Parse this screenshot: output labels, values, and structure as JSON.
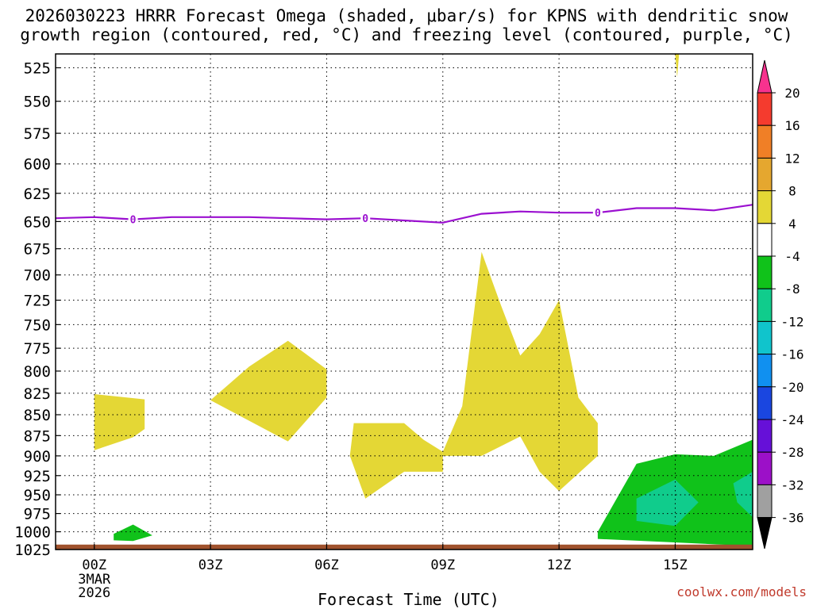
{
  "title_line1": "2026030223 HRRR Forecast Omega (shaded, μbar/s) for KPNS with dendritic snow",
  "title_line2": "growth region (contoured, red, °C) and freezing level (contoured, purple, °C)",
  "xlabel": "Forecast Time (UTC)",
  "credit": "coolwx.com/models",
  "chart_data": {
    "type": "heatmap",
    "title": "2026030223 HRRR Forecast Omega (shaded, μbar/s) for KPNS with dendritic snow growth region (contoured, red, °C) and freezing level (contoured, purple, °C)",
    "xlabel": "Forecast Time (UTC)",
    "ylabel": "",
    "x_ticks": [
      "00Z",
      "03Z",
      "06Z",
      "09Z",
      "12Z",
      "15Z"
    ],
    "x_tick_hours": [
      0,
      3,
      6,
      9,
      12,
      15
    ],
    "x_date_label": [
      "3MAR",
      "2026"
    ],
    "xlim_hours": [
      -1,
      17
    ],
    "y_ticks": [
      525,
      550,
      575,
      600,
      625,
      650,
      675,
      700,
      725,
      750,
      775,
      800,
      825,
      850,
      875,
      900,
      925,
      950,
      975,
      1000,
      1025
    ],
    "ylim_hpa": [
      515,
      1025
    ],
    "y_scale": "log-pressure (inverted)",
    "grid": true,
    "colorbar": {
      "levels": [
        20,
        16,
        12,
        8,
        4,
        -4,
        -8,
        -12,
        -16,
        -20,
        -24,
        -28,
        -32,
        -36
      ],
      "colors": [
        "#f7328e",
        "#f53b2e",
        "#f07f26",
        "#e5a72f",
        "#e4d735",
        "#ffffff",
        "#10c21a",
        "#10cc8c",
        "#10c4cc",
        "#1090f0",
        "#1a46e0",
        "#6610d8",
        "#9c10c8",
        "#a0a0a0",
        "#000000"
      ]
    },
    "freezing_level": {
      "label": "0",
      "color": "#9b10d0",
      "hours": [
        -1,
        0,
        1,
        2,
        3,
        4,
        5,
        6,
        7,
        8,
        9,
        10,
        11,
        12,
        13,
        14,
        15,
        16,
        17
      ],
      "pressure_hpa": [
        647,
        646,
        648,
        646,
        646,
        646,
        647,
        648,
        647,
        649,
        651,
        643,
        641,
        642,
        642,
        638,
        638,
        640,
        635
      ]
    },
    "shaded_regions": [
      {
        "category": "4 to 8 μbar/s",
        "color": "#e4d735",
        "hours": [
          0,
          1.3,
          1.3,
          1,
          0
        ],
        "pressure_hpa": [
          826,
          832,
          867,
          877,
          893
        ]
      },
      {
        "category": "4 to 8 μbar/s",
        "color": "#e4d735",
        "hours": [
          3,
          4,
          5,
          6,
          6,
          5,
          3
        ],
        "pressure_hpa": [
          833,
          795,
          767,
          798,
          830,
          882,
          833
        ]
      },
      {
        "category": "4 to 8 μbar/s",
        "color": "#e4d735",
        "hours": [
          6.7,
          7.5,
          8,
          8.5,
          9,
          9,
          8,
          7,
          6.6
        ],
        "pressure_hpa": [
          860,
          860,
          860,
          880,
          895,
          920,
          920,
          955,
          900
        ]
      },
      {
        "category": "4 to 8 μbar/s",
        "color": "#e4d735",
        "hours": [
          9,
          9.5,
          10,
          10.5,
          11,
          11.5,
          12,
          12.5,
          13,
          13,
          12,
          11.5,
          11,
          10,
          9
        ],
        "pressure_hpa": [
          895,
          840,
          678,
          730,
          783,
          760,
          725,
          830,
          860,
          900,
          945,
          920,
          876,
          900,
          900
        ]
      },
      {
        "category": "-8 to -4 μbar/s",
        "color": "#10c21a",
        "hours": [
          0.5,
          1,
          1.5,
          1,
          0.5
        ],
        "pressure_hpa": [
          1003,
          990,
          1005,
          1013,
          1012
        ]
      },
      {
        "category": "-8 to -4 μbar/s",
        "color": "#10c21a",
        "hours": [
          13,
          14,
          15,
          16,
          17,
          17,
          13
        ],
        "pressure_hpa": [
          1000,
          910,
          898,
          900,
          880,
          1020,
          1010
        ]
      },
      {
        "category": "-12 to -8 μbar/s",
        "color": "#10cc8c",
        "hours": [
          14,
          15,
          15.6,
          15,
          14
        ],
        "pressure_hpa": [
          955,
          930,
          960,
          992,
          985
        ]
      },
      {
        "category": "-12 to -8 μbar/s",
        "color": "#10cc8c",
        "hours": [
          16.5,
          17,
          17,
          16.6
        ],
        "pressure_hpa": [
          935,
          920,
          980,
          960
        ]
      },
      {
        "category": "4 to 8 μbar/s",
        "color": "#e4d735",
        "hours": [
          15,
          15.05,
          15.1
        ],
        "pressure_hpa": [
          515,
          532,
          515
        ]
      }
    ],
    "surface": {
      "color": "#a0522d",
      "pressure_hpa": 1018
    }
  }
}
